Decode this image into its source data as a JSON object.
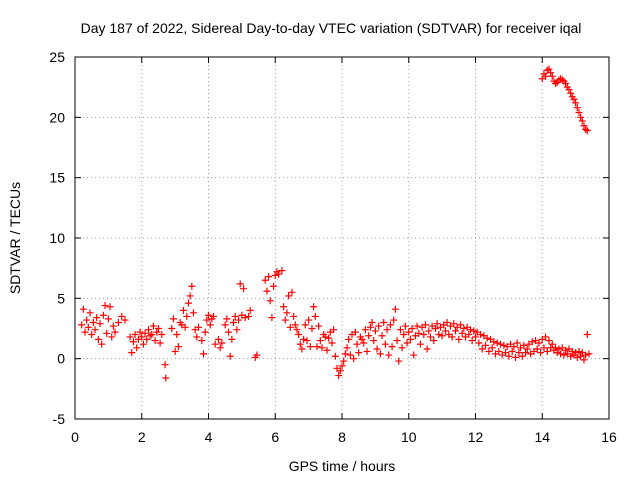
{
  "chart_data": {
    "type": "scatter",
    "title": "Day 187 of 2022, Sidereal Day-to-day VTEC variation (SDTVAR) for receiver iqal",
    "xlabel": "GPS time / hours",
    "ylabel": "SDTVAR / TECUs",
    "xlim": [
      0,
      16
    ],
    "ylim": [
      -5,
      25
    ],
    "xticks": [
      0,
      2,
      4,
      6,
      8,
      10,
      12,
      14,
      16
    ],
    "yticks": [
      -5,
      0,
      5,
      10,
      15,
      20,
      25
    ],
    "grid": true,
    "marker": "+",
    "color": "#ff0000",
    "series": [
      {
        "name": "SDTVAR",
        "values": [
          [
            0.2,
            2.8
          ],
          [
            0.25,
            4.1
          ],
          [
            0.3,
            2.2
          ],
          [
            0.35,
            3.2
          ],
          [
            0.4,
            2.6
          ],
          [
            0.45,
            3.8
          ],
          [
            0.5,
            2.0
          ],
          [
            0.55,
            3.0
          ],
          [
            0.6,
            2.4
          ],
          [
            0.65,
            3.4
          ],
          [
            0.7,
            1.6
          ],
          [
            0.75,
            2.9
          ],
          [
            0.8,
            1.2
          ],
          [
            0.85,
            3.6
          ],
          [
            0.9,
            4.4
          ],
          [
            0.95,
            2.1
          ],
          [
            1.0,
            3.3
          ],
          [
            1.05,
            4.3
          ],
          [
            1.1,
            1.8
          ],
          [
            1.15,
            2.7
          ],
          [
            1.2,
            2.2
          ],
          [
            1.3,
            3.0
          ],
          [
            1.4,
            3.5
          ],
          [
            1.5,
            3.2
          ],
          [
            1.65,
            1.8
          ],
          [
            1.7,
            0.5
          ],
          [
            1.75,
            1.4
          ],
          [
            1.8,
            2.0
          ],
          [
            1.85,
            0.9
          ],
          [
            1.9,
            1.6
          ],
          [
            1.95,
            2.2
          ],
          [
            2.0,
            1.8
          ],
          [
            2.05,
            1.2
          ],
          [
            2.1,
            2.1
          ],
          [
            2.15,
            1.6
          ],
          [
            2.2,
            2.4
          ],
          [
            2.25,
            1.9
          ],
          [
            2.3,
            2.0
          ],
          [
            2.35,
            2.7
          ],
          [
            2.4,
            1.5
          ],
          [
            2.45,
            2.2
          ],
          [
            2.5,
            2.5
          ],
          [
            2.55,
            1.3
          ],
          [
            2.6,
            2.0
          ],
          [
            2.7,
            -0.5
          ],
          [
            2.72,
            -1.6
          ],
          [
            2.9,
            2.5
          ],
          [
            2.95,
            3.3
          ],
          [
            3.0,
            0.6
          ],
          [
            3.05,
            2.0
          ],
          [
            3.1,
            1.0
          ],
          [
            3.15,
            3.0
          ],
          [
            3.2,
            2.8
          ],
          [
            3.25,
            4.0
          ],
          [
            3.3,
            2.6
          ],
          [
            3.35,
            3.5
          ],
          [
            3.4,
            4.6
          ],
          [
            3.45,
            5.2
          ],
          [
            3.5,
            6.0
          ],
          [
            3.55,
            3.8
          ],
          [
            3.6,
            2.4
          ],
          [
            3.65,
            1.8
          ],
          [
            3.7,
            2.6
          ],
          [
            3.8,
            1.5
          ],
          [
            3.85,
            0.4
          ],
          [
            3.9,
            2.2
          ],
          [
            3.95,
            3.2
          ],
          [
            4.0,
            3.6
          ],
          [
            4.05,
            2.8
          ],
          [
            4.1,
            3.3
          ],
          [
            4.15,
            3.5
          ],
          [
            4.2,
            1.2
          ],
          [
            4.3,
            1.6
          ],
          [
            4.35,
            0.9
          ],
          [
            4.4,
            1.3
          ],
          [
            4.5,
            2.8
          ],
          [
            4.55,
            3.3
          ],
          [
            4.6,
            2.2
          ],
          [
            4.65,
            0.2
          ],
          [
            4.7,
            1.6
          ],
          [
            4.75,
            3.0
          ],
          [
            4.8,
            3.5
          ],
          [
            4.85,
            2.4
          ],
          [
            4.9,
            3.2
          ],
          [
            4.95,
            6.2
          ],
          [
            5.0,
            3.6
          ],
          [
            5.05,
            5.8
          ],
          [
            5.1,
            3.4
          ],
          [
            5.2,
            3.5
          ],
          [
            5.25,
            4.0
          ],
          [
            5.4,
            0.1
          ],
          [
            5.45,
            0.3
          ],
          [
            5.7,
            6.5
          ],
          [
            5.75,
            5.6
          ],
          [
            5.8,
            6.8
          ],
          [
            5.85,
            4.8
          ],
          [
            5.9,
            3.4
          ],
          [
            5.95,
            6.0
          ],
          [
            6.0,
            6.9
          ],
          [
            6.05,
            7.2
          ],
          [
            6.1,
            7.0
          ],
          [
            6.2,
            7.3
          ],
          [
            6.25,
            4.3
          ],
          [
            6.3,
            3.2
          ],
          [
            6.35,
            3.8
          ],
          [
            6.4,
            5.2
          ],
          [
            6.45,
            2.6
          ],
          [
            6.5,
            5.5
          ],
          [
            6.55,
            3.5
          ],
          [
            6.6,
            2.8
          ],
          [
            6.65,
            2.4
          ],
          [
            6.7,
            2.0
          ],
          [
            6.75,
            1.2
          ],
          [
            6.8,
            0.8
          ],
          [
            6.85,
            1.6
          ],
          [
            6.9,
            2.8
          ],
          [
            6.95,
            1.5
          ],
          [
            7.0,
            3.2
          ],
          [
            7.05,
            1.0
          ],
          [
            7.1,
            2.5
          ],
          [
            7.15,
            4.3
          ],
          [
            7.2,
            3.5
          ],
          [
            7.25,
            1.0
          ],
          [
            7.3,
            2.7
          ],
          [
            7.35,
            1.5
          ],
          [
            7.4,
            0.9
          ],
          [
            7.45,
            2.0
          ],
          [
            7.5,
            1.8
          ],
          [
            7.55,
            0.7
          ],
          [
            7.6,
            1.7
          ],
          [
            7.65,
            2.2
          ],
          [
            7.7,
            1.3
          ],
          [
            7.75,
            2.4
          ],
          [
            7.8,
            0.2
          ],
          [
            7.85,
            -0.8
          ],
          [
            7.9,
            -1.4
          ],
          [
            7.95,
            -1.0
          ],
          [
            8.0,
            -0.6
          ],
          [
            8.05,
            -0.2
          ],
          [
            8.1,
            0.4
          ],
          [
            8.15,
            0.9
          ],
          [
            8.2,
            1.6
          ],
          [
            8.25,
            0.3
          ],
          [
            8.3,
            2.0
          ],
          [
            8.35,
            0.0
          ],
          [
            8.4,
            2.2
          ],
          [
            8.45,
            1.2
          ],
          [
            8.5,
            0.5
          ],
          [
            8.55,
            1.8
          ],
          [
            8.6,
            1.6
          ],
          [
            8.65,
            1.3
          ],
          [
            8.7,
            2.4
          ],
          [
            8.75,
            0.6
          ],
          [
            8.8,
            1.9
          ],
          [
            8.85,
            2.6
          ],
          [
            8.9,
            3.0
          ],
          [
            8.95,
            1.5
          ],
          [
            9.0,
            2.3
          ],
          [
            9.05,
            0.8
          ],
          [
            9.1,
            2.7
          ],
          [
            9.15,
            0.4
          ],
          [
            9.2,
            1.9
          ],
          [
            9.25,
            3.0
          ],
          [
            9.3,
            1.2
          ],
          [
            9.35,
            2.4
          ],
          [
            9.4,
            0.3
          ],
          [
            9.45,
            2.8
          ],
          [
            9.5,
            1.0
          ],
          [
            9.55,
            3.2
          ],
          [
            9.6,
            4.1
          ],
          [
            9.65,
            1.5
          ],
          [
            9.7,
            -0.2
          ],
          [
            9.75,
            2.4
          ],
          [
            9.8,
            0.9
          ],
          [
            9.85,
            2.0
          ],
          [
            9.9,
            2.7
          ],
          [
            9.95,
            1.3
          ],
          [
            10.0,
            2.2
          ],
          [
            10.05,
            1.6
          ],
          [
            10.1,
            2.5
          ],
          [
            10.15,
            0.3
          ],
          [
            10.2,
            1.9
          ],
          [
            10.25,
            2.7
          ],
          [
            10.3,
            2.1
          ],
          [
            10.35,
            1.2
          ],
          [
            10.4,
            2.6
          ],
          [
            10.45,
            2.0
          ],
          [
            10.5,
            2.8
          ],
          [
            10.55,
            0.8
          ],
          [
            10.6,
            2.3
          ],
          [
            10.65,
            1.8
          ],
          [
            10.7,
            2.7
          ],
          [
            10.75,
            1.5
          ],
          [
            10.8,
            2.5
          ],
          [
            10.85,
            2.9
          ],
          [
            10.9,
            2.0
          ],
          [
            10.95,
            2.6
          ],
          [
            11.0,
            1.9
          ],
          [
            11.05,
            2.8
          ],
          [
            11.1,
            2.3
          ],
          [
            11.15,
            3.0
          ],
          [
            11.2,
            2.0
          ],
          [
            11.25,
            2.7
          ],
          [
            11.3,
            1.8
          ],
          [
            11.35,
            2.9
          ],
          [
            11.4,
            2.3
          ],
          [
            11.45,
            2.6
          ],
          [
            11.5,
            1.6
          ],
          [
            11.55,
            2.8
          ],
          [
            11.6,
            2.1
          ],
          [
            11.65,
            2.5
          ],
          [
            11.7,
            1.8
          ],
          [
            11.75,
            2.6
          ],
          [
            11.8,
            2.0
          ],
          [
            11.85,
            2.4
          ],
          [
            11.9,
            1.5
          ],
          [
            11.95,
            2.3
          ],
          [
            12.0,
            1.8
          ],
          [
            12.05,
            2.2
          ],
          [
            12.1,
            1.3
          ],
          [
            12.15,
            2.0
          ],
          [
            12.2,
            0.8
          ],
          [
            12.25,
            1.9
          ],
          [
            12.3,
            1.1
          ],
          [
            12.35,
            1.7
          ],
          [
            12.4,
            0.6
          ],
          [
            12.45,
            1.6
          ],
          [
            12.5,
            0.9
          ],
          [
            12.55,
            1.4
          ],
          [
            12.6,
            0.4
          ],
          [
            12.65,
            1.3
          ],
          [
            12.7,
            0.6
          ],
          [
            12.75,
            1.2
          ],
          [
            12.8,
            0.3
          ],
          [
            12.85,
            1.1
          ],
          [
            12.9,
            0.5
          ],
          [
            12.95,
            1.0
          ],
          [
            13.0,
            0.2
          ],
          [
            13.05,
            1.2
          ],
          [
            13.1,
            0.6
          ],
          [
            13.15,
            1.0
          ],
          [
            13.2,
            0.1
          ],
          [
            13.25,
            1.3
          ],
          [
            13.3,
            0.5
          ],
          [
            13.35,
            0.9
          ],
          [
            13.4,
            0.2
          ],
          [
            13.45,
            1.1
          ],
          [
            13.5,
            0.5
          ],
          [
            13.55,
            0.8
          ],
          [
            13.6,
            1.2
          ],
          [
            13.65,
            0.4
          ],
          [
            13.7,
            1.4
          ],
          [
            13.75,
            0.6
          ],
          [
            13.8,
            1.5
          ],
          [
            13.85,
            0.8
          ],
          [
            13.9,
            1.3
          ],
          [
            13.95,
            0.5
          ],
          [
            14.0,
            1.6
          ],
          [
            14.05,
            0.9
          ],
          [
            14.1,
            1.8
          ],
          [
            14.15,
            0.6
          ],
          [
            14.2,
            1.5
          ],
          [
            14.25,
            0.9
          ],
          [
            14.3,
            1.2
          ],
          [
            14.35,
            0.7
          ],
          [
            14.4,
            0.9
          ],
          [
            14.45,
            0.5
          ],
          [
            14.5,
            0.8
          ],
          [
            14.55,
            0.4
          ],
          [
            14.6,
            0.9
          ],
          [
            14.65,
            0.3
          ],
          [
            14.7,
            0.7
          ],
          [
            14.75,
            0.4
          ],
          [
            14.8,
            0.8
          ],
          [
            14.85,
            0.2
          ],
          [
            14.9,
            0.6
          ],
          [
            14.95,
            0.3
          ],
          [
            15.0,
            0.5
          ],
          [
            15.05,
            0.1
          ],
          [
            15.1,
            0.6
          ],
          [
            15.15,
            0.2
          ],
          [
            15.2,
            0.5
          ],
          [
            15.25,
            -0.1
          ],
          [
            15.3,
            0.3
          ],
          [
            15.35,
            2.0
          ],
          [
            15.4,
            0.4
          ],
          [
            14.0,
            23.2
          ],
          [
            14.05,
            23.6
          ],
          [
            14.1,
            23.4
          ],
          [
            14.15,
            23.9
          ],
          [
            14.2,
            24.0
          ],
          [
            14.25,
            23.7
          ],
          [
            14.3,
            23.4
          ],
          [
            14.35,
            23.0
          ],
          [
            14.4,
            22.8
          ],
          [
            14.45,
            22.9
          ],
          [
            14.5,
            23.1
          ],
          [
            14.55,
            23.2
          ],
          [
            14.6,
            23.1
          ],
          [
            14.65,
            23.0
          ],
          [
            14.7,
            22.8
          ],
          [
            14.75,
            22.5
          ],
          [
            14.8,
            22.3
          ],
          [
            14.85,
            22.0
          ],
          [
            14.9,
            21.7
          ],
          [
            14.95,
            21.5
          ],
          [
            15.0,
            21.2
          ],
          [
            15.05,
            20.8
          ],
          [
            15.1,
            20.4
          ],
          [
            15.15,
            20.0
          ],
          [
            15.2,
            19.7
          ],
          [
            15.25,
            19.3
          ],
          [
            15.3,
            19.0
          ],
          [
            15.35,
            18.9
          ]
        ]
      }
    ]
  }
}
